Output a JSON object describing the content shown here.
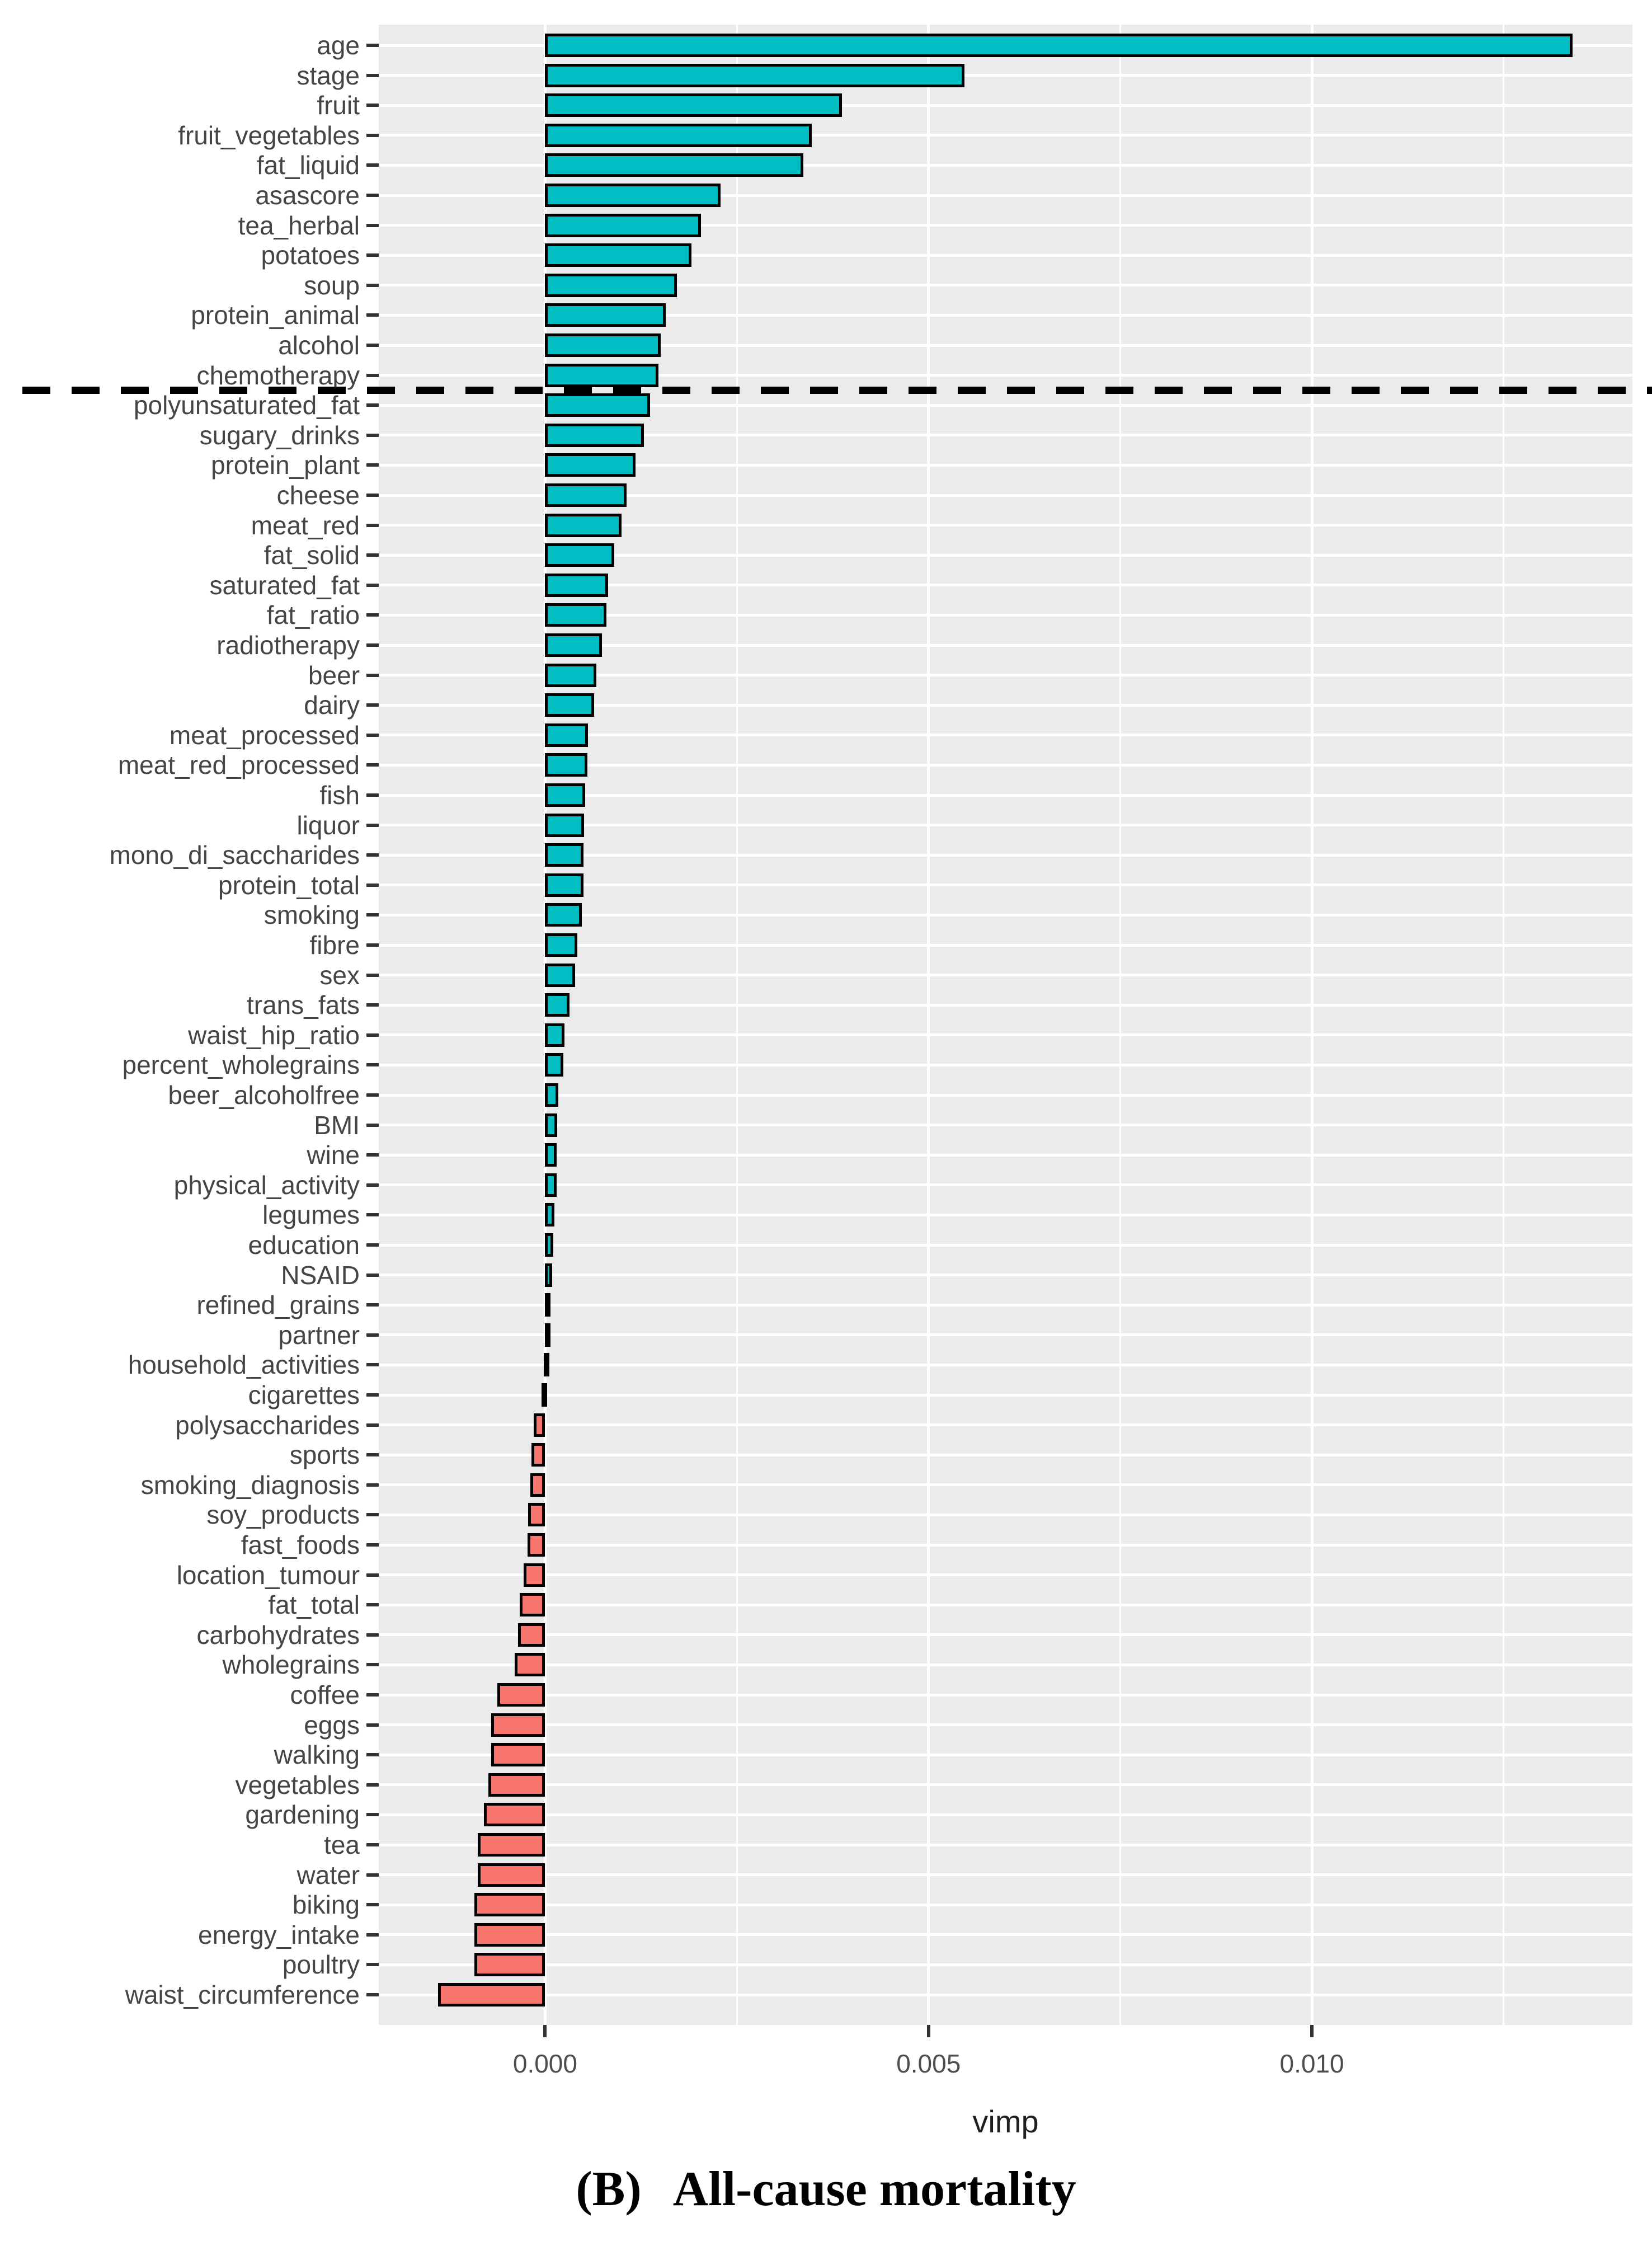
{
  "caption": {
    "prefix": "(B)",
    "text": "All-cause mortality"
  },
  "chart_data": {
    "type": "bar",
    "orientation": "horizontal",
    "title": "",
    "xlabel": "vimp",
    "ylabel": "",
    "grid": true,
    "legend": "none",
    "xlim": [
      -0.00217,
      0.01418
    ],
    "x_major_ticks": [
      0.0,
      0.005,
      0.01
    ],
    "x_tick_labels": [
      "0.000",
      "0.005",
      "0.010"
    ],
    "x_minor_ticks": [
      0.0025,
      0.0075,
      0.0125
    ],
    "positive_color": "#00BEC4",
    "negative_color": "#F8766D",
    "bar_border_color": "#000000",
    "panel_background": "#EBEBEB",
    "threshold_dashed_line_after_category": "chemotherapy",
    "categories": [
      "age",
      "stage",
      "fruit",
      "fruit_vegetables",
      "fat_liquid",
      "asascore",
      "tea_herbal",
      "potatoes",
      "soup",
      "protein_animal",
      "alcohol",
      "chemotherapy",
      "polyunsaturated_fat",
      "sugary_drinks",
      "protein_plant",
      "cheese",
      "meat_red",
      "fat_solid",
      "saturated_fat",
      "fat_ratio",
      "radiotherapy",
      "beer",
      "dairy",
      "meat_processed",
      "meat_red_processed",
      "fish",
      "liquor",
      "mono_di_saccharides",
      "protein_total",
      "smoking",
      "fibre",
      "sex",
      "trans_fats",
      "waist_hip_ratio",
      "percent_wholegrains",
      "beer_alcoholfree",
      "BMI",
      "wine",
      "physical_activity",
      "legumes",
      "education",
      "NSAID",
      "refined_grains",
      "partner",
      "household_activities",
      "cigarettes",
      "polysaccharides",
      "sports",
      "smoking_diagnosis",
      "soy_products",
      "fast_foods",
      "location_tumour",
      "fat_total",
      "carbohydrates",
      "wholegrains",
      "coffee",
      "eggs",
      "walking",
      "vegetables",
      "gardening",
      "tea",
      "water",
      "biking",
      "energy_intake",
      "poultry",
      "waist_circumference"
    ],
    "values": [
      0.0134,
      0.00547,
      0.00387,
      0.00348,
      0.00337,
      0.00229,
      0.00203,
      0.00191,
      0.00172,
      0.00157,
      0.00151,
      0.00148,
      0.00137,
      0.00129,
      0.00118,
      0.00106,
      0.001,
      0.0009,
      0.00082,
      0.0008,
      0.00074,
      0.00067,
      0.00064,
      0.00056,
      0.00055,
      0.00052,
      0.00051,
      0.0005,
      0.0005,
      0.00048,
      0.00042,
      0.00039,
      0.00032,
      0.00025,
      0.00024,
      0.00017,
      0.00016,
      0.00015,
      0.00015,
      0.00012,
      0.00011,
      9e-05,
      5e-05,
      2e-05,
      -2e-05,
      -5e-05,
      -0.00015,
      -0.00018,
      -0.00019,
      -0.00022,
      -0.00023,
      -0.00028,
      -0.00033,
      -0.00035,
      -0.0004,
      -0.00062,
      -0.0007,
      -0.0007,
      -0.00074,
      -0.0008,
      -0.00088,
      -0.00088,
      -0.00092,
      -0.00092,
      -0.00092,
      -0.0014
    ]
  }
}
